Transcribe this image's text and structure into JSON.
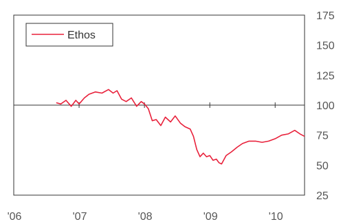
{
  "chart_data": {
    "type": "line",
    "title": "",
    "xlabel": "",
    "ylabel": "",
    "ylim": [
      25,
      175
    ],
    "y_ticks": [
      25,
      50,
      75,
      100,
      125,
      150,
      175
    ],
    "x_range": [
      2006.0,
      2010.45
    ],
    "x_ticks": [
      {
        "value": 2006,
        "label": "'06"
      },
      {
        "value": 2007,
        "label": "'07"
      },
      {
        "value": 2008,
        "label": "'08"
      },
      {
        "value": 2009,
        "label": "'09"
      },
      {
        "value": 2010,
        "label": "'10"
      }
    ],
    "reference_line": 100,
    "grid": false,
    "legend_position": "top-left",
    "series": [
      {
        "name": "Ethos",
        "color": "#e8203a",
        "x": [
          2006.65,
          2006.72,
          2006.8,
          2006.88,
          2006.95,
          2007.0,
          2007.08,
          2007.15,
          2007.25,
          2007.35,
          2007.45,
          2007.52,
          2007.58,
          2007.65,
          2007.72,
          2007.8,
          2007.88,
          2007.95,
          2008.0,
          2008.06,
          2008.12,
          2008.18,
          2008.25,
          2008.32,
          2008.4,
          2008.47,
          2008.55,
          2008.62,
          2008.7,
          2008.75,
          2008.8,
          2008.85,
          2008.9,
          2008.95,
          2009.0,
          2009.05,
          2009.1,
          2009.14,
          2009.18,
          2009.25,
          2009.33,
          2009.42,
          2009.5,
          2009.6,
          2009.7,
          2009.8,
          2009.9,
          2010.0,
          2010.1,
          2010.2,
          2010.3,
          2010.38,
          2010.45
        ],
        "y": [
          102,
          101,
          104,
          99,
          104,
          101,
          106,
          109,
          111,
          110,
          113,
          110,
          112,
          105,
          103,
          106,
          99,
          103,
          101,
          97,
          87,
          88,
          83,
          90,
          86,
          91,
          85,
          82,
          80,
          74,
          63,
          57,
          60,
          57,
          58,
          54,
          55,
          52,
          51,
          58,
          61,
          65,
          68,
          70,
          70,
          69,
          70,
          72,
          75,
          76,
          79,
          76,
          74
        ]
      }
    ]
  }
}
